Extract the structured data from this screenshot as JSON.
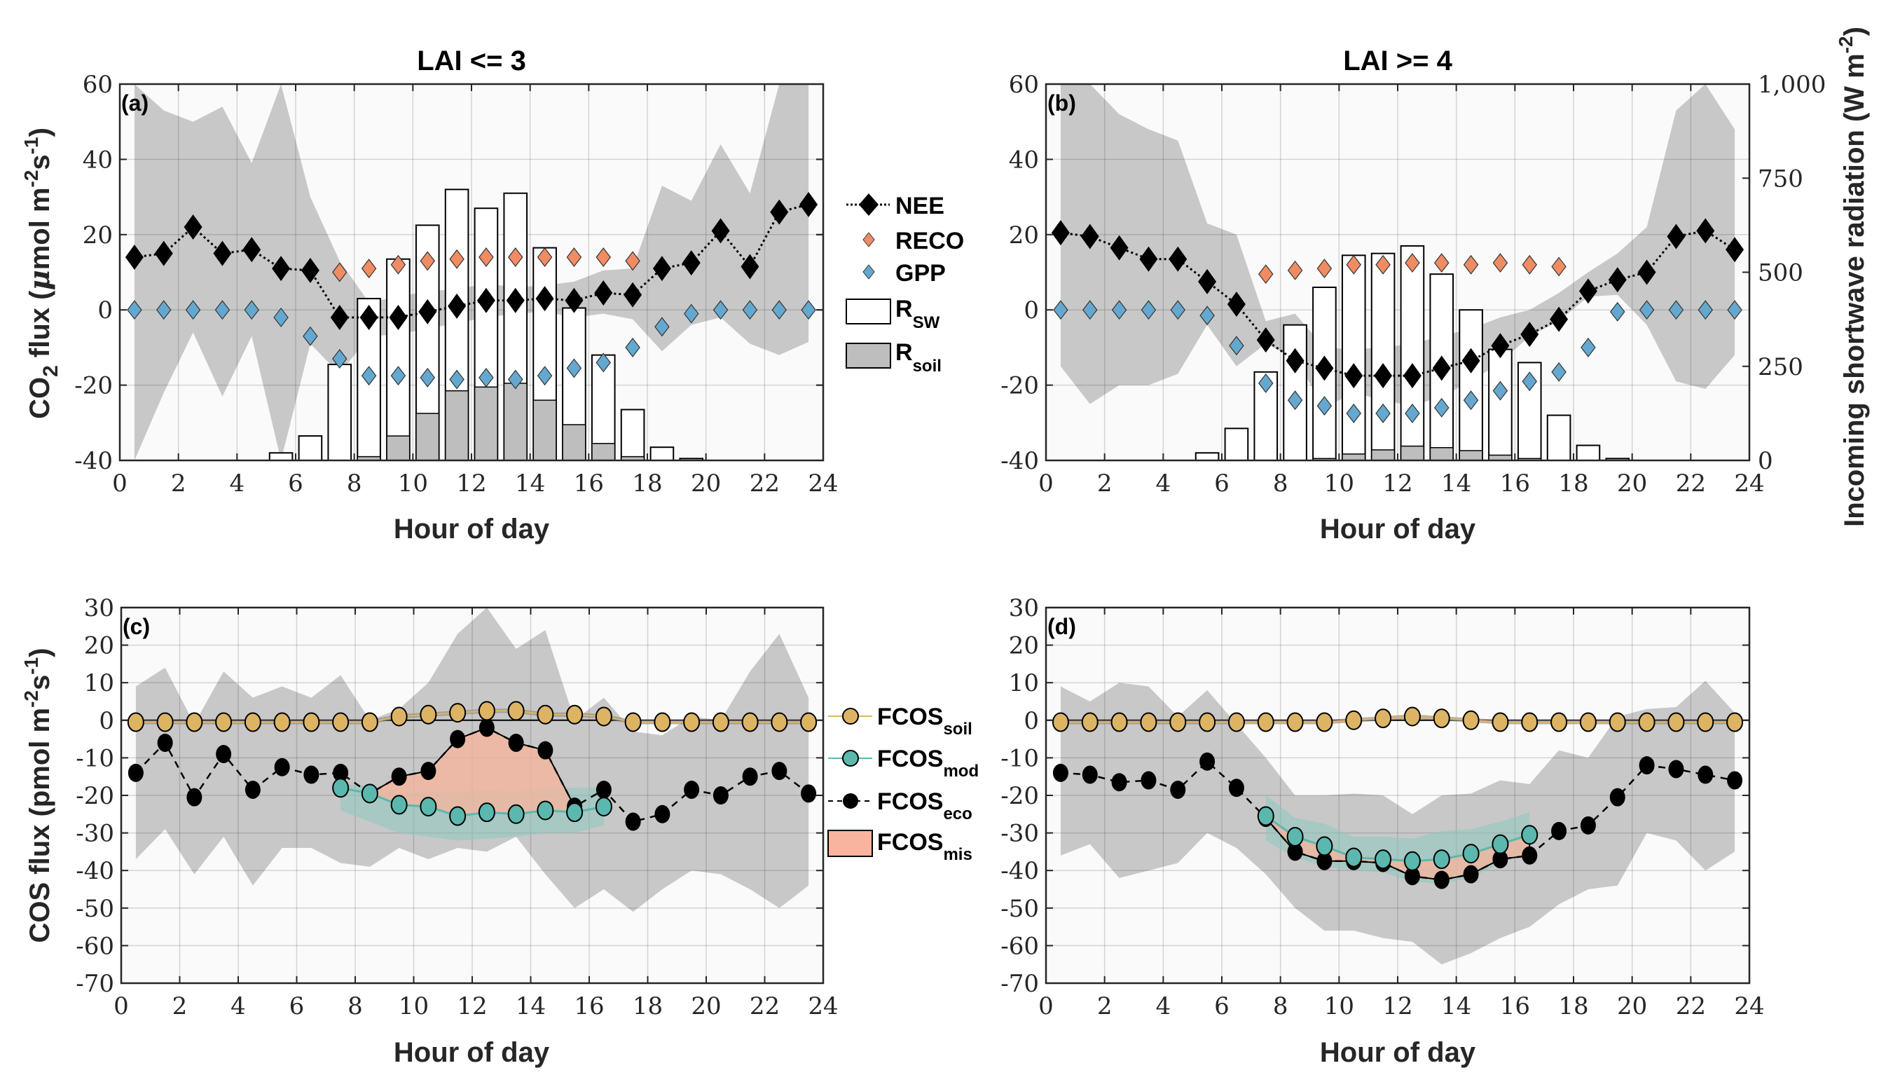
{
  "chart_data": [
    {
      "id": "a",
      "type": "line",
      "panel_label": "(a)",
      "title": "LAI <= 3",
      "xlabel": "Hour of day",
      "ylabel": "CO2 flux (μmol m-2 s-1)",
      "ylabel_parts": {
        "main": "CO",
        "sub": "2",
        "rest": " flux (",
        "mu": "μ",
        "unit": "mol m",
        "sup1": "-2",
        "s": "s",
        "sup2": "-1",
        "close": ")"
      },
      "xlim": [
        0,
        24
      ],
      "ylim": [
        -40,
        60
      ],
      "xticks": [
        0,
        2,
        4,
        6,
        8,
        10,
        12,
        14,
        16,
        18,
        20,
        22,
        24
      ],
      "yticks": [
        -40,
        -20,
        0,
        20,
        40,
        60
      ],
      "grid": true,
      "x": [
        0.5,
        1.5,
        2.5,
        3.5,
        4.5,
        5.5,
        6.5,
        7.5,
        8.5,
        9.5,
        10.5,
        11.5,
        12.5,
        13.5,
        14.5,
        15.5,
        16.5,
        17.5,
        18.5,
        19.5,
        20.5,
        21.5,
        22.5,
        23.5
      ],
      "series": [
        {
          "name": "NEE",
          "values": [
            14,
            15,
            22,
            15,
            16,
            11,
            10.5,
            -2,
            -2,
            -2,
            -0.5,
            1,
            2.5,
            2.5,
            3,
            2.5,
            4.5,
            4,
            11,
            12.5,
            21,
            11.5,
            26,
            28
          ]
        },
        {
          "name": "RECO",
          "x": [
            7.5,
            8.5,
            9.5,
            10.5,
            11.5,
            12.5,
            13.5,
            14.5,
            15.5,
            16.5,
            17.5
          ],
          "values": [
            10,
            11,
            12,
            13,
            13.5,
            14,
            14,
            14,
            14,
            14,
            13
          ]
        },
        {
          "name": "GPP",
          "values": [
            0,
            0,
            0,
            0,
            0,
            -2,
            -7,
            -13,
            -17.5,
            -17.5,
            -18,
            -18.5,
            -18,
            -18.5,
            -17.5,
            -15.5,
            -14,
            -10,
            -4.5,
            -1,
            0,
            0,
            0,
            0
          ]
        },
        {
          "name": "R_SW",
          "axis": "right",
          "values": [
            0,
            0,
            0,
            0,
            0,
            20,
            65,
            255,
            430,
            535,
            625,
            720,
            670,
            710,
            565,
            405,
            280,
            135,
            35,
            5,
            0,
            0,
            0,
            0
          ]
        },
        {
          "name": "R_soil",
          "axis": "right",
          "values": [
            0,
            0,
            0,
            0,
            0,
            0,
            0,
            0,
            10,
            65,
            125,
            185,
            195,
            205,
            160,
            95,
            45,
            10,
            0,
            0,
            0,
            0,
            0,
            0
          ]
        }
      ],
      "nee_band": {
        "upper": [
          60,
          53,
          50,
          54,
          39,
          60,
          30,
          13,
          2,
          3.5,
          5,
          5.5,
          7,
          6,
          6.5,
          7.5,
          10.5,
          11,
          33,
          29,
          44,
          31,
          60,
          60
        ],
        "lower": [
          -40,
          -22,
          -6,
          -23,
          -7,
          -40,
          -9,
          -17,
          -7,
          -6.5,
          -5,
          -3.5,
          -2,
          -1,
          -0.5,
          -2,
          -1,
          -2.5,
          -11,
          -4,
          -2,
          -9,
          -12,
          -8.5
        ]
      },
      "right_axis": {
        "label": "Incoming shortwave radiation (W m-2)",
        "ylim": [
          0,
          1000
        ]
      }
    },
    {
      "id": "b",
      "type": "line",
      "panel_label": "(b)",
      "title": "LAI >= 4",
      "xlabel": "Hour of day",
      "xlim": [
        0,
        24
      ],
      "ylim": [
        -40,
        60
      ],
      "xticks": [
        0,
        2,
        4,
        6,
        8,
        10,
        12,
        14,
        16,
        18,
        20,
        22,
        24
      ],
      "yticks": [
        -40,
        -20,
        0,
        20,
        40,
        60
      ],
      "grid": true,
      "x": [
        0.5,
        1.5,
        2.5,
        3.5,
        4.5,
        5.5,
        6.5,
        7.5,
        8.5,
        9.5,
        10.5,
        11.5,
        12.5,
        13.5,
        14.5,
        15.5,
        16.5,
        17.5,
        18.5,
        19.5,
        20.5,
        21.5,
        22.5,
        23.5
      ],
      "series": [
        {
          "name": "NEE",
          "values": [
            20.5,
            19.5,
            16.5,
            13.5,
            13.5,
            7.5,
            1.5,
            -8,
            -13.5,
            -15.5,
            -17.5,
            -17.5,
            -17.5,
            -15.5,
            -13.5,
            -9.5,
            -6.5,
            -2.5,
            5,
            8,
            10,
            19.5,
            21,
            16
          ]
        },
        {
          "name": "RECO",
          "x": [
            7.5,
            8.5,
            9.5,
            10.5,
            11.5,
            12.5,
            13.5,
            14.5,
            15.5,
            16.5,
            17.5
          ],
          "values": [
            9.5,
            10.5,
            11,
            12,
            12,
            12.5,
            12.5,
            12,
            12.5,
            12,
            11.5
          ]
        },
        {
          "name": "GPP",
          "values": [
            0,
            0,
            0,
            0,
            0,
            -1.5,
            -9.5,
            -19.5,
            -24,
            -25.5,
            -27.5,
            -27.5,
            -27.5,
            -26,
            -24,
            -21.5,
            -19,
            -16.5,
            -10,
            -0.5,
            0,
            0,
            0,
            0
          ]
        },
        {
          "name": "R_SW",
          "axis": "right",
          "values": [
            0,
            0,
            0,
            0,
            0,
            20,
            85,
            235,
            360,
            460,
            545,
            550,
            570,
            495,
            400,
            295,
            260,
            120,
            40,
            5,
            0,
            0,
            0,
            0
          ]
        },
        {
          "name": "R_soil",
          "axis": "right",
          "values": [
            0,
            0,
            0,
            0,
            0,
            0,
            0,
            0,
            0,
            5,
            17,
            28,
            38,
            34,
            26,
            14,
            5,
            0,
            0,
            0,
            0,
            0,
            0,
            0
          ]
        }
      ],
      "nee_band": {
        "upper": [
          60,
          60,
          52,
          48,
          45,
          23,
          20,
          -3,
          -1,
          -10,
          -10.5,
          -10,
          -9,
          -7,
          -5,
          -2,
          0,
          4.5,
          10,
          15,
          22,
          53,
          60,
          48
        ],
        "lower": [
          -15,
          -25,
          -20,
          -20,
          -17,
          -4,
          -15,
          -9,
          -13,
          -26,
          -22,
          -24,
          -25.5,
          -23,
          -19,
          -14,
          -7,
          -3,
          3.5,
          4,
          -4,
          -19,
          -21,
          -12
        ]
      },
      "right_axis": {
        "label": "Incoming shortwave radiation (W m-2)",
        "ylim": [
          0,
          1000
        ],
        "ticks": [
          "0",
          "250",
          "500",
          "750",
          "1,000"
        ],
        "tick_values": [
          0,
          250,
          500,
          750,
          1000
        ]
      }
    },
    {
      "id": "c",
      "type": "line",
      "panel_label": "(c)",
      "xlabel": "Hour of day",
      "ylabel": "COS flux (pmol m-2 s-1)",
      "xlim": [
        0,
        24
      ],
      "ylim": [
        -70,
        30
      ],
      "xticks": [
        0,
        2,
        4,
        6,
        8,
        10,
        12,
        14,
        16,
        18,
        20,
        22,
        24
      ],
      "yticks": [
        -70,
        -60,
        -50,
        -40,
        -30,
        -20,
        -10,
        0,
        10,
        20,
        30
      ],
      "grid": true,
      "x": [
        0.5,
        1.5,
        2.5,
        3.5,
        4.5,
        5.5,
        6.5,
        7.5,
        8.5,
        9.5,
        10.5,
        11.5,
        12.5,
        13.5,
        14.5,
        15.5,
        16.5,
        17.5,
        18.5,
        19.5,
        20.5,
        21.5,
        22.5,
        23.5
      ],
      "series": [
        {
          "name": "FCOS_soil",
          "values": [
            -0.5,
            -0.5,
            -0.5,
            -0.5,
            -0.5,
            -0.5,
            -0.5,
            -0.5,
            -0.5,
            1,
            1.5,
            2,
            2.5,
            2.5,
            1.5,
            1.5,
            1,
            -0.5,
            -0.5,
            -0.5,
            -0.5,
            -0.5,
            -0.5,
            -0.5
          ]
        },
        {
          "name": "FCOS_mod",
          "x": [
            7.5,
            8.5,
            9.5,
            10.5,
            11.5,
            12.5,
            13.5,
            14.5,
            15.5,
            16.5
          ],
          "values": [
            -18,
            -19.5,
            -22.5,
            -23,
            -25.5,
            -24.5,
            -25,
            -24,
            -24.5,
            -23
          ]
        },
        {
          "name": "FCOS_eco",
          "values": [
            -14,
            -6,
            -20.5,
            -9,
            -18.5,
            -12.5,
            -14.5,
            -14,
            -19.5,
            -15,
            -13.5,
            -5,
            -2,
            -6,
            -8,
            -23,
            -18.5,
            -27,
            -25,
            -18.5,
            -20,
            -15,
            -13.5,
            -19.5
          ]
        }
      ],
      "mis_x": [
        8.5,
        9.5,
        10.5,
        11.5,
        12.5,
        13.5,
        14.5,
        15.5
      ],
      "eco_band": {
        "upper": [
          9,
          14,
          -1,
          13,
          6,
          9,
          6,
          12,
          0,
          3,
          10,
          23,
          30,
          19,
          24,
          0,
          6,
          -3,
          -4,
          1,
          0,
          13,
          23,
          6
        ],
        "lower": [
          -37,
          -29,
          -41,
          -31,
          -44,
          -34,
          -34,
          -38,
          -39,
          -34,
          -37,
          -34,
          -35,
          -31,
          -41,
          -50,
          -45,
          -51,
          -45,
          -40,
          -41,
          -45,
          -50,
          -44
        ]
      },
      "mod_band": {
        "upper": [
          -17,
          -17.5,
          -19.5,
          -19,
          -19,
          -18.5,
          -19,
          -18,
          -18,
          -18
        ],
        "lower": [
          -24,
          -27,
          -30,
          -31,
          -32,
          -31.5,
          -31,
          -30,
          -30,
          -28
        ]
      }
    },
    {
      "id": "d",
      "type": "line",
      "panel_label": "(d)",
      "xlabel": "Hour of day",
      "xlim": [
        0,
        24
      ],
      "ylim": [
        -70,
        30
      ],
      "xticks": [
        0,
        2,
        4,
        6,
        8,
        10,
        12,
        14,
        16,
        18,
        20,
        22,
        24
      ],
      "yticks": [
        -70,
        -60,
        -50,
        -40,
        -30,
        -20,
        -10,
        0,
        10,
        20,
        30
      ],
      "grid": true,
      "x": [
        0.5,
        1.5,
        2.5,
        3.5,
        4.5,
        5.5,
        6.5,
        7.5,
        8.5,
        9.5,
        10.5,
        11.5,
        12.5,
        13.5,
        14.5,
        15.5,
        16.5,
        17.5,
        18.5,
        19.5,
        20.5,
        21.5,
        22.5,
        23.5
      ],
      "series": [
        {
          "name": "FCOS_soil",
          "values": [
            -0.5,
            -0.5,
            -0.5,
            -0.5,
            -0.5,
            -0.5,
            -0.5,
            -0.5,
            -0.5,
            -0.5,
            0,
            0.5,
            1,
            0.5,
            0,
            -0.5,
            -0.5,
            -0.5,
            -0.5,
            -0.5,
            -0.5,
            -0.5,
            -0.5,
            -0.5
          ]
        },
        {
          "name": "FCOS_mod",
          "x": [
            7.5,
            8.5,
            9.5,
            10.5,
            11.5,
            12.5,
            13.5,
            14.5,
            15.5,
            16.5
          ],
          "values": [
            -25.5,
            -31,
            -33.5,
            -36.5,
            -37,
            -37.5,
            -37,
            -35.5,
            -33,
            -30.5
          ]
        },
        {
          "name": "FCOS_eco",
          "values": [
            -14,
            -14.5,
            -16.5,
            -16,
            -18.5,
            -11,
            -18,
            -26,
            -35,
            -37.5,
            -37.5,
            -38,
            -41.5,
            -42.5,
            -41,
            -37,
            -36,
            -29.5,
            -28,
            -20.5,
            -12,
            -13,
            -14.5,
            -16
          ]
        }
      ],
      "mis_x": [
        7.5,
        8.5,
        9.5,
        10.5,
        11.5,
        12.5,
        13.5,
        14.5,
        15.5,
        16.5
      ],
      "eco_band": {
        "upper": [
          9,
          5,
          10,
          9,
          1,
          8,
          -1,
          -10,
          -20,
          -20,
          -19.5,
          -20,
          -25,
          -20,
          -19.5,
          -16,
          -17,
          -8,
          -10,
          1,
          3,
          3.5,
          10.5,
          2
        ],
        "lower": [
          -36,
          -33,
          -42,
          -40,
          -38,
          -30,
          -34,
          -41,
          -50,
          -56,
          -56,
          -58,
          -59,
          -65,
          -62,
          -58,
          -55,
          -49,
          -45,
          -44,
          -30,
          -32,
          -40,
          -35
        ]
      },
      "mod_band": {
        "upper": [
          -20,
          -26,
          -27.5,
          -31,
          -31,
          -31.5,
          -29.5,
          -29,
          -27,
          -24.5
        ],
        "lower": [
          -32,
          -36.5,
          -39,
          -40,
          -40.5,
          -43,
          -43.5,
          -42,
          -38,
          -34
        ]
      }
    }
  ],
  "legends": {
    "co2": [
      {
        "name": "NEE",
        "main": "NEE",
        "sub": ""
      },
      {
        "name": "RECO",
        "main": "RECO",
        "sub": ""
      },
      {
        "name": "GPP",
        "main": "GPP",
        "sub": ""
      },
      {
        "name": "R_SW",
        "main": "R",
        "sub": "SW"
      },
      {
        "name": "R_soil",
        "main": "R",
        "sub": "soil"
      }
    ],
    "cos": [
      {
        "name": "FCOS_soil",
        "main": "FCOS",
        "sub": "soil"
      },
      {
        "name": "FCOS_mod",
        "main": "FCOS",
        "sub": "mod"
      },
      {
        "name": "FCOS_eco",
        "main": "FCOS",
        "sub": "eco"
      },
      {
        "name": "FCOS_mis",
        "main": "FCOS",
        "sub": "mis"
      }
    ]
  },
  "labels": {
    "co2_ylabel_main": "CO",
    "co2_ylabel_sub": "2",
    "co2_ylabel_rest": " flux (",
    "co2_ylabel_mu": "μ",
    "co2_ylabel_unit": "mol m",
    "co2_ylabel_sup1": "-2",
    "co2_ylabel_s": "s",
    "co2_ylabel_sup2": "-1",
    "co2_ylabel_close": ")",
    "cos_ylabel_main": "COS flux (pmol m",
    "cos_ylabel_sup1": "-2",
    "cos_ylabel_s": "s",
    "cos_ylabel_sup2": "-1",
    "cos_ylabel_close": ")",
    "right_ylabel_main": "Incoming shortwave radiation (W m",
    "right_ylabel_sup": "-2",
    "right_ylabel_close": ")"
  },
  "colors": {
    "band": "#c8c8c8",
    "axes_bg": "#fafafa",
    "nee": "#000000",
    "reco": "#f08c64",
    "gpp": "#64a8d0",
    "rsw": "#ffffff",
    "rsoil": "#bebebe",
    "fcos_soil": "#dcb464",
    "fcos_mod": "#5ab8ae",
    "fcos_eco": "#000000",
    "fcos_mis": "#f8b49c",
    "mod_band": "#8cc8c0"
  }
}
